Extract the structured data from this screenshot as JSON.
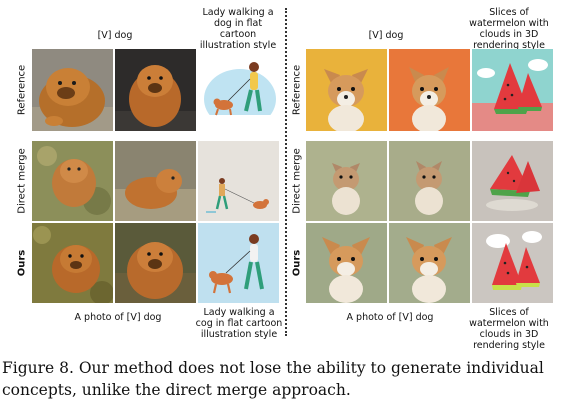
{
  "figure": {
    "left": {
      "top_labels": [
        "[V] dog",
        "Lady walking a dog in flat cartoon illustration style"
      ],
      "bottom_labels": [
        "A photo of [V] dog",
        "Lady walking a cog in flat cartoon illustration style"
      ]
    },
    "right": {
      "top_labels": [
        "[V] dog",
        "Slices of watermelon with clouds in 3D rendering style"
      ],
      "bottom_labels": [
        "A photo of [V] dog",
        "Slices of watermelon with clouds in 3D rendering style"
      ]
    },
    "row_labels": [
      "Reference",
      "Direct merge",
      "Ours"
    ],
    "caption": "Figure 8. Our method does not lose the ability to generate individual concepts, unlike the direct merge approach."
  },
  "colors": {
    "chow": "#b8732e",
    "corgi": "#d9a066",
    "watermelon_red": "#e23a3e",
    "rind_green": "#4fa34a",
    "sky": "#bfe3f2"
  }
}
